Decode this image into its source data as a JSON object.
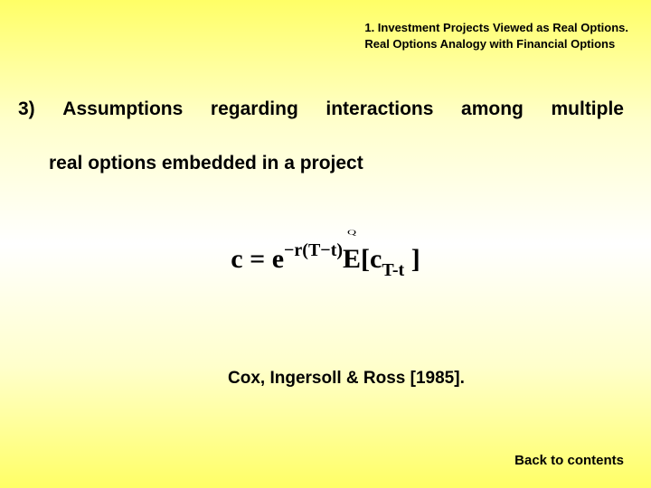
{
  "header": {
    "line1": "1. Investment Projects Viewed as Real Options.",
    "line2": "Real Options Analogy with Financial Options"
  },
  "body": {
    "numberLabel": "3)",
    "w1": "Assumptions",
    "w2": "regarding",
    "w3": "interactions",
    "w4": "among",
    "w5": "multiple",
    "line2": "real options embedded in a project"
  },
  "formula": {
    "lhs": "c = e",
    "exponent": "−r(T−t)",
    "expect": "E",
    "bracket_open": "[c",
    "subscript": "T-t",
    "bracket_close": " ]"
  },
  "citation": "Cox, Ingersoll & Ross [1985].",
  "backLink": "Back to contents",
  "styling": {
    "slide_width": 720,
    "slide_height": 540,
    "background_gradient": [
      "#ffff66",
      "#ffffcc",
      "#ffffff",
      "#ffffcc",
      "#ffff66"
    ],
    "text_color": "#000000",
    "header_fontsize": 13,
    "body_fontsize": 21,
    "formula_fontsize": 30,
    "citation_fontsize": 19,
    "backlink_fontsize": 15,
    "font_family_body": "Arial",
    "font_family_formula": "Times New Roman"
  }
}
